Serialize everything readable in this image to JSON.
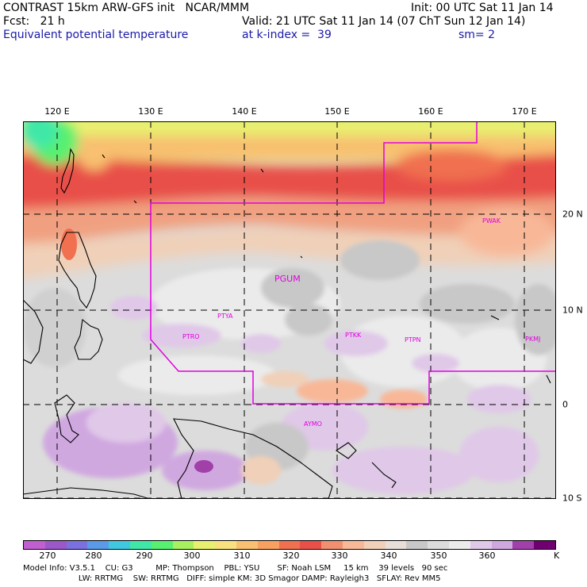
{
  "header": {
    "title": "CONTRAST 15km ARW-GFS init   NCAR/MMM",
    "init": "Init: 00 UTC Sat 11 Jan 14",
    "fcst": "Fcst:   21 h",
    "valid": "Valid: 21 UTC Sat 11 Jan 14 (07 ChT Sun 12 Jan 14)",
    "field": "Equivalent potential temperature",
    "level": "at k-index =  39",
    "smooth": "sm= 2"
  },
  "map": {
    "lon_labels": [
      "120 E",
      "130 E",
      "140 E",
      "150 E",
      "160 E",
      "170 E"
    ],
    "lat_labels": [
      "20 N",
      "10 N",
      "0",
      "10 S"
    ],
    "stations": [
      "PWAK",
      "PGUM",
      "PTYA",
      "PTRO",
      "PTKK",
      "PTPN",
      "PKMJ",
      "AYMO"
    ],
    "colors": {
      "coast": "#000000",
      "grid": "#000000",
      "domain_box": "#e000e0"
    }
  },
  "colorbar": {
    "colors": [
      "#c060d0",
      "#9a58c8",
      "#7a70e0",
      "#5a9ae8",
      "#40c8e0",
      "#40e8a8",
      "#58f070",
      "#a8f060",
      "#e8f070",
      "#f8e080",
      "#f8c070",
      "#f8a060",
      "#f07050",
      "#e85048",
      "#f09070",
      "#f8b898",
      "#f0d0b8",
      "#e8e0d8",
      "#c8c8c8",
      "#dcdcdc",
      "#ebebeb",
      "#e0c8e8",
      "#d0a8e0",
      "#a040a8",
      "#700070"
    ],
    "tick_labels": [
      "270",
      "280",
      "290",
      "300",
      "310",
      "320",
      "330",
      "340",
      "350",
      "360"
    ],
    "unit": "K"
  },
  "footer": {
    "line1": "Model Info: V3.5.1    CU: G3         MP: Thompson    PBL: YSU       SF: Noah LSM     15 km    39 levels   90 sec",
    "line2": "                      LW: RRTMG    SW: RRTMG   DIFF: simple KM: 3D Smagor DAMP: Rayleigh3   SFLAY: Rev MM5"
  }
}
